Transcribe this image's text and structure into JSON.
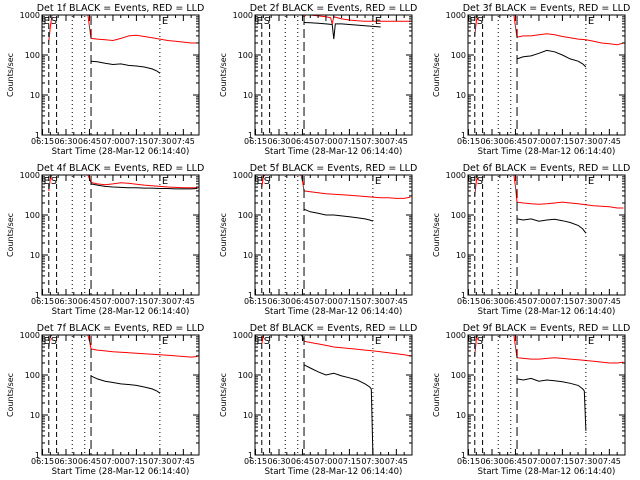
{
  "shared": {
    "ylabel": "Counts/sec",
    "xlabel": "Start Time (28-Mar-12 06:14:40)",
    "x_tick_labels": [
      "06:15",
      "06:30",
      "06:45",
      "07:00",
      "07:15",
      "07:30",
      "07:45"
    ],
    "x_ticks_min": [
      15,
      30,
      45,
      60,
      75,
      90,
      105
    ],
    "xlim_min": [
      14.67,
      115
    ],
    "y_tick_labels": [
      "1",
      "10",
      "100",
      "1000"
    ],
    "y_ticks": [
      1,
      10,
      100,
      1000
    ],
    "ylim": [
      1,
      1000
    ],
    "yscale": "log",
    "flag_labels": [
      "E",
      "S",
      "E"
    ],
    "colors": {
      "events": "#000000",
      "lld": "#ff0000"
    }
  },
  "chart_data": [
    {
      "type": "line",
      "title": "Det 1f BLACK = Events, RED = LLD",
      "series": [
        {
          "name": "Events",
          "color": "#000000",
          "x": [
            46,
            50,
            55,
            60,
            65,
            70,
            75,
            80,
            85,
            88,
            90
          ],
          "y": [
            70,
            68,
            62,
            58,
            60,
            55,
            53,
            50,
            45,
            40,
            35
          ]
        },
        {
          "name": "LLD",
          "color": "#ff0000",
          "x": [
            19,
            20,
            21,
            40,
            44,
            45,
            46,
            50,
            55,
            60,
            65,
            70,
            75,
            80,
            85,
            90,
            95,
            100,
            105,
            110,
            114
          ],
          "y": [
            220,
            500,
            1000,
            1000,
            1000,
            500,
            260,
            250,
            240,
            230,
            260,
            300,
            310,
            290,
            270,
            250,
            230,
            220,
            210,
            200,
            200
          ]
        }
      ]
    },
    {
      "type": "line",
      "title": "Det 2f BLACK = Events, RED = LLD",
      "series": [
        {
          "name": "Events",
          "color": "#000000",
          "x": [
            46,
            50,
            55,
            60,
            64,
            65,
            66,
            70,
            75,
            80,
            85,
            90,
            95
          ],
          "y": [
            650,
            640,
            620,
            600,
            580,
            250,
            600,
            600,
            580,
            560,
            540,
            520,
            500
          ]
        },
        {
          "name": "LLD",
          "color": "#ff0000",
          "x": [
            19,
            20,
            21,
            34,
            38,
            42,
            45,
            46,
            48,
            50,
            55,
            60,
            63,
            64,
            65,
            70,
            75,
            80,
            85,
            90,
            95,
            100,
            105,
            110,
            114
          ],
          "y": [
            1000,
            1000,
            1000,
            1000,
            1000,
            1000,
            1000,
            900,
            1100,
            1000,
            950,
            900,
            850,
            600,
            900,
            800,
            750,
            720,
            700,
            700,
            700,
            700,
            700,
            700,
            700
          ]
        }
      ]
    },
    {
      "type": "line",
      "title": "Det 3f BLACK = Events, RED = LLD",
      "series": [
        {
          "name": "Events",
          "color": "#000000",
          "x": [
            46,
            50,
            55,
            60,
            65,
            70,
            75,
            80,
            85,
            88,
            90
          ],
          "y": [
            80,
            90,
            95,
            110,
            130,
            120,
            100,
            80,
            70,
            60,
            50
          ]
        },
        {
          "name": "LLD",
          "color": "#ff0000",
          "x": [
            19,
            20,
            21,
            40,
            44,
            45,
            46,
            50,
            55,
            60,
            65,
            70,
            75,
            80,
            85,
            90,
            95,
            100,
            105,
            110,
            114
          ],
          "y": [
            300,
            700,
            1000,
            1000,
            1000,
            500,
            280,
            300,
            300,
            320,
            340,
            320,
            290,
            270,
            250,
            240,
            220,
            200,
            190,
            180,
            200
          ]
        }
      ]
    },
    {
      "type": "line",
      "title": "Det 4f BLACK = Events, RED = LLD",
      "series": [
        {
          "name": "Events",
          "color": "#000000",
          "x": [
            46,
            50,
            55,
            60,
            65,
            70,
            75,
            80,
            85,
            90,
            95,
            100,
            105,
            110,
            114
          ],
          "y": [
            600,
            560,
            520,
            500,
            490,
            480,
            480,
            470,
            470,
            460,
            460,
            450,
            450,
            450,
            460
          ]
        },
        {
          "name": "LLD",
          "color": "#ff0000",
          "x": [
            19,
            20,
            21,
            40,
            44,
            45,
            46,
            50,
            55,
            60,
            65,
            70,
            75,
            80,
            85,
            90,
            95,
            100,
            105,
            110,
            114
          ],
          "y": [
            400,
            800,
            1000,
            1000,
            1000,
            800,
            650,
            600,
            570,
            600,
            640,
            620,
            590,
            560,
            540,
            520,
            500,
            490,
            480,
            480,
            480
          ]
        }
      ]
    },
    {
      "type": "line",
      "title": "Det 5f BLACK = Events, RED = LLD",
      "series": [
        {
          "name": "Events",
          "color": "#000000",
          "x": [
            46,
            50,
            55,
            60,
            65,
            70,
            75,
            80,
            85,
            88,
            90
          ],
          "y": [
            140,
            120,
            110,
            100,
            100,
            95,
            90,
            85,
            80,
            75,
            70
          ]
        },
        {
          "name": "LLD",
          "color": "#ff0000",
          "x": [
            19,
            20,
            21,
            40,
            44,
            45,
            46,
            50,
            55,
            60,
            65,
            70,
            75,
            80,
            85,
            90,
            95,
            100,
            105,
            110,
            114
          ],
          "y": [
            500,
            900,
            1000,
            1000,
            1000,
            700,
            400,
            380,
            360,
            340,
            330,
            320,
            310,
            300,
            290,
            280,
            270,
            270,
            260,
            260,
            280
          ]
        }
      ]
    },
    {
      "type": "line",
      "title": "Det 6f BLACK = Events, RED = LLD",
      "series": [
        {
          "name": "Events",
          "color": "#000000",
          "x": [
            46,
            50,
            55,
            60,
            65,
            70,
            75,
            80,
            85,
            88,
            90
          ],
          "y": [
            80,
            75,
            80,
            70,
            75,
            78,
            72,
            65,
            55,
            45,
            35
          ]
        },
        {
          "name": "LLD",
          "color": "#ff0000",
          "x": [
            19,
            20,
            21,
            40,
            44,
            45,
            46,
            50,
            55,
            60,
            65,
            70,
            75,
            80,
            85,
            90,
            95,
            100,
            105,
            110,
            114
          ],
          "y": [
            300,
            700,
            1000,
            1000,
            1000,
            500,
            210,
            200,
            190,
            185,
            190,
            200,
            210,
            200,
            190,
            180,
            170,
            165,
            160,
            150,
            150
          ]
        }
      ]
    },
    {
      "type": "line",
      "title": "Det 7f BLACK = Events, RED = LLD",
      "series": [
        {
          "name": "Events",
          "color": "#000000",
          "x": [
            46,
            50,
            55,
            60,
            65,
            70,
            75,
            80,
            85,
            88,
            90
          ],
          "y": [
            95,
            80,
            70,
            65,
            60,
            58,
            55,
            50,
            45,
            40,
            35
          ]
        },
        {
          "name": "LLD",
          "color": "#ff0000",
          "x": [
            19,
            20,
            21,
            40,
            44,
            45,
            46,
            50,
            55,
            60,
            65,
            70,
            75,
            80,
            85,
            90,
            95,
            100,
            105,
            110,
            114
          ],
          "y": [
            500,
            900,
            1000,
            1000,
            1000,
            700,
            450,
            420,
            400,
            380,
            370,
            360,
            350,
            340,
            330,
            320,
            310,
            300,
            290,
            280,
            290
          ]
        }
      ]
    },
    {
      "type": "line",
      "title": "Det 8f BLACK = Events, RED = LLD",
      "series": [
        {
          "name": "Events",
          "color": "#000000",
          "x": [
            46,
            50,
            55,
            60,
            65,
            70,
            75,
            80,
            85,
            88,
            89,
            90
          ],
          "y": [
            180,
            150,
            120,
            100,
            110,
            95,
            85,
            75,
            60,
            50,
            45,
            1
          ]
        },
        {
          "name": "LLD",
          "color": "#ff0000",
          "x": [
            19,
            20,
            21,
            40,
            44,
            45,
            46,
            50,
            55,
            60,
            65,
            70,
            75,
            80,
            85,
            90,
            95,
            100,
            105,
            110,
            114
          ],
          "y": [
            600,
            1000,
            1000,
            1000,
            1000,
            900,
            700,
            650,
            600,
            550,
            500,
            480,
            460,
            440,
            420,
            400,
            380,
            360,
            340,
            320,
            300
          ]
        }
      ]
    },
    {
      "type": "line",
      "title": "Det 9f BLACK = Events, RED = LLD",
      "series": [
        {
          "name": "Events",
          "color": "#000000",
          "x": [
            46,
            50,
            55,
            60,
            65,
            70,
            75,
            80,
            85,
            88,
            89,
            90
          ],
          "y": [
            80,
            75,
            82,
            70,
            75,
            72,
            68,
            62,
            55,
            45,
            40,
            4
          ]
        },
        {
          "name": "LLD",
          "color": "#ff0000",
          "x": [
            19,
            20,
            21,
            40,
            44,
            45,
            46,
            50,
            55,
            60,
            65,
            70,
            75,
            80,
            85,
            90,
            95,
            100,
            105,
            110,
            114
          ],
          "y": [
            300,
            800,
            1000,
            1000,
            1000,
            500,
            270,
            260,
            250,
            250,
            260,
            270,
            260,
            250,
            240,
            230,
            220,
            210,
            200,
            200,
            210
          ]
        }
      ]
    }
  ]
}
